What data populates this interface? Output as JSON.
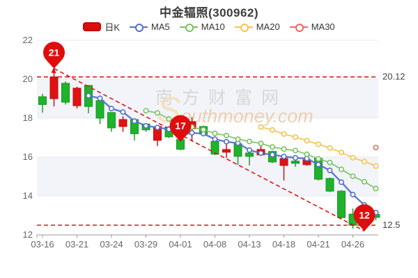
{
  "title": "中金辐照(300962)",
  "legend": [
    {
      "label": "日K",
      "color": "#e00d0d",
      "type": "rect"
    },
    {
      "label": "MA5",
      "color": "#5470c6",
      "type": "line"
    },
    {
      "label": "MA10",
      "color": "#78c25e",
      "type": "line"
    },
    {
      "label": "MA20",
      "color": "#f6c34a",
      "type": "line"
    },
    {
      "label": "MA30",
      "color": "#ee6666",
      "type": "line"
    }
  ],
  "watermark": {
    "line1": "南方财富网",
    "line2_initial": "S",
    "line2_rest": "outhmoney.com"
  },
  "chart_data": {
    "type": "candlestick",
    "dates": [
      "03-16",
      "03-17",
      "03-18",
      "03-21",
      "03-22",
      "03-23",
      "03-24",
      "03-25",
      "03-28",
      "03-29",
      "03-30",
      "03-31",
      "04-01",
      "04-06",
      "04-07",
      "04-08",
      "04-11",
      "04-12",
      "04-13",
      "04-14",
      "04-15",
      "04-18",
      "04-19",
      "04-20",
      "04-21",
      "04-22",
      "04-25",
      "04-26",
      "04-27",
      "04-28"
    ],
    "open": [
      19.1,
      19.0,
      19.79,
      18.64,
      19.68,
      18.9,
      18.29,
      17.57,
      17.93,
      17.7,
      16.86,
      17.54,
      16.9,
      17.46,
      17.57,
      16.8,
      16.25,
      16.68,
      16.21,
      16.11,
      16.29,
      15.57,
      15.79,
      15.61,
      15.93,
      14.9,
      14.25,
      13.07,
      12.5,
      13.05
    ],
    "close": [
      18.7,
      20.12,
      18.82,
      19.54,
      18.6,
      18.0,
      17.5,
      17.93,
      17.2,
      17.4,
      17.57,
      17.04,
      16.4,
      17.82,
      17.18,
      16.15,
      16.39,
      16.04,
      16.04,
      16.39,
      15.75,
      15.93,
      15.68,
      15.86,
      14.86,
      14.25,
      12.89,
      12.5,
      13.2,
      12.9
    ],
    "high": [
      19.25,
      20.6,
      19.89,
      19.62,
      19.7,
      18.95,
      18.3,
      18.1,
      17.95,
      17.75,
      17.62,
      17.6,
      16.95,
      18.05,
      17.62,
      16.85,
      16.82,
      16.7,
      16.5,
      16.82,
      16.32,
      16.1,
      15.96,
      16.04,
      15.95,
      14.95,
      14.3,
      13.36,
      13.3,
      13.15
    ],
    "low": [
      18.28,
      18.6,
      18.7,
      18.5,
      18.25,
      17.7,
      17.3,
      17.3,
      16.85,
      17.3,
      16.57,
      16.98,
      16.35,
      16.8,
      17.1,
      16.1,
      15.96,
      15.6,
      15.57,
      16.05,
      15.7,
      14.8,
      15.5,
      15.55,
      14.8,
      14.2,
      12.85,
      12.32,
      12.2,
      12.75
    ],
    "ma_periods": [
      5,
      10,
      20,
      30
    ],
    "x_ticks": [
      "03-16",
      "03-21",
      "03-24",
      "03-29",
      "04-01",
      "04-08",
      "04-13",
      "04-18",
      "04-21",
      "04-26"
    ],
    "x_tick_indices": [
      0,
      3,
      6,
      9,
      12,
      15,
      18,
      21,
      24,
      27
    ],
    "y_axis": {
      "min": 12,
      "max": 22,
      "ticks": [
        22,
        20,
        18,
        16,
        14,
        12
      ]
    },
    "reference_lines": [
      {
        "value": 20.12,
        "label": "20.12"
      },
      {
        "value": 12.5,
        "label": "12.5"
      }
    ],
    "trend_line": {
      "from_index": 1,
      "from_price": 20.55,
      "to_index": 28,
      "to_price": 12.2
    },
    "markers": [
      {
        "index": 1,
        "label": "21",
        "anchor_price": 20.55
      },
      {
        "index": 12,
        "label": "17",
        "anchor_price": 16.78
      },
      {
        "index": 28,
        "label": "12",
        "anchor_price": 12.2
      }
    ],
    "colors": {
      "up": "#e01212",
      "up_border": "#c40808",
      "down": "#1eb32b",
      "down_border": "#12961f",
      "ma5": "#5470c6",
      "ma10": "#78c25e",
      "ma20": "#f6c34a",
      "ma30": "#ee6666",
      "reference": "#e01212",
      "band": "#f2f4fa",
      "grid": "#e7eaf3",
      "axis": "#999999",
      "tick_label": "#666666",
      "ref_label": "#444444",
      "marker_fill": "#e00d0d",
      "marker_text": "#ffffff"
    },
    "legend_position": "top",
    "grid": "alternating-bands",
    "title": "中金辐照(300962)"
  }
}
